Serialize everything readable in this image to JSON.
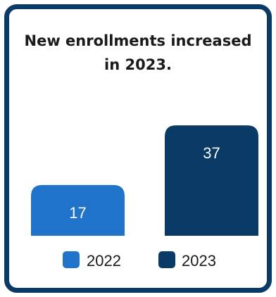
{
  "chart_data": {
    "type": "bar",
    "title": "New enrollments increased in 2023.",
    "categories": [
      "2022",
      "2023"
    ],
    "values": [
      17,
      37
    ],
    "ylim": [
      0,
      45
    ],
    "grid": false,
    "legend": "bottom",
    "colors": [
      "#1f73c8",
      "#0a3a66"
    ]
  }
}
